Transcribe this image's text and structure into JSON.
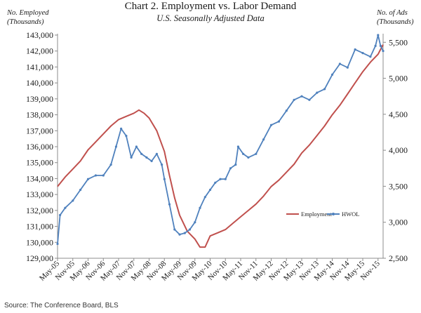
{
  "chart_data": {
    "type": "line",
    "title": "Chart 2. Employment vs. Labor Demand",
    "subtitle": "U.S. Seasonally Adjusted Data",
    "ylabel_left": [
      "No. Employed",
      "(Thousands)"
    ],
    "ylabel_right": [
      "No. of Ads",
      "(Thousands)"
    ],
    "source": "Source: The Conference Board, BLS",
    "ylim_left": [
      129000,
      143000
    ],
    "ylim_right": [
      2500,
      5600
    ],
    "yticks_left": [
      "129,000",
      "130,000",
      "131,000",
      "132,000",
      "133,000",
      "134,000",
      "135,000",
      "136,000",
      "137,000",
      "138,000",
      "139,000",
      "140,000",
      "141,000",
      "142,000",
      "143,000"
    ],
    "yticks_right": [
      "2,500",
      "3,000",
      "3,500",
      "4,000",
      "4,500",
      "5,000",
      "5,500"
    ],
    "xticks": [
      "May-05",
      "Nov-05",
      "May-06",
      "Nov-06",
      "May-07",
      "Nov-07",
      "May-08",
      "Nov-08",
      "May-09",
      "Nov-09",
      "May-10",
      "Nov-10",
      "May-11",
      "Nov-11",
      "May-12",
      "Nov-12",
      "May-13",
      "Nov-13",
      "May-14",
      "Nov-14",
      "May-15",
      "Nov-15"
    ],
    "legend_position": "center-right",
    "grid": false,
    "colors": {
      "employment": "#c0504d",
      "hwol": "#4f81bd"
    },
    "series": [
      {
        "name": "Employment",
        "axis": "left",
        "points": [
          [
            "May-05",
            133500
          ],
          [
            "Aug-05",
            134100
          ],
          [
            "Nov-05",
            134600
          ],
          [
            "Feb-06",
            135100
          ],
          [
            "May-06",
            135800
          ],
          [
            "Aug-06",
            136300
          ],
          [
            "Nov-06",
            136800
          ],
          [
            "Feb-07",
            137300
          ],
          [
            "May-07",
            137700
          ],
          [
            "Aug-07",
            137900
          ],
          [
            "Nov-07",
            138100
          ],
          [
            "Jan-08",
            138300
          ],
          [
            "Mar-08",
            138100
          ],
          [
            "May-08",
            137800
          ],
          [
            "Aug-08",
            137000
          ],
          [
            "Nov-08",
            135700
          ],
          [
            "Jan-09",
            134200
          ],
          [
            "Mar-09",
            132800
          ],
          [
            "May-09",
            131700
          ],
          [
            "Aug-09",
            130700
          ],
          [
            "Nov-09",
            130200
          ],
          [
            "Jan-10",
            129700
          ],
          [
            "Mar-10",
            129700
          ],
          [
            "May-10",
            130400
          ],
          [
            "Aug-10",
            130600
          ],
          [
            "Nov-10",
            130800
          ],
          [
            "Feb-11",
            131200
          ],
          [
            "May-11",
            131600
          ],
          [
            "Aug-11",
            132000
          ],
          [
            "Nov-11",
            132400
          ],
          [
            "Feb-12",
            132900
          ],
          [
            "May-12",
            133500
          ],
          [
            "Aug-12",
            133900
          ],
          [
            "Nov-12",
            134400
          ],
          [
            "Feb-13",
            134900
          ],
          [
            "May-13",
            135600
          ],
          [
            "Aug-13",
            136100
          ],
          [
            "Nov-13",
            136700
          ],
          [
            "Feb-14",
            137300
          ],
          [
            "May-14",
            138000
          ],
          [
            "Aug-14",
            138600
          ],
          [
            "Nov-14",
            139300
          ],
          [
            "Feb-15",
            140000
          ],
          [
            "May-15",
            140700
          ],
          [
            "Aug-15",
            141300
          ],
          [
            "Nov-15",
            141800
          ],
          [
            "Dec-15",
            142100
          ],
          [
            "Jan-16",
            142400
          ]
        ]
      },
      {
        "name": "HWOL",
        "axis": "right",
        "points": [
          [
            "May-05",
            2700
          ],
          [
            "Jun-05",
            3100
          ],
          [
            "Aug-05",
            3200
          ],
          [
            "Nov-05",
            3300
          ],
          [
            "Feb-06",
            3450
          ],
          [
            "May-06",
            3600
          ],
          [
            "Aug-06",
            3650
          ],
          [
            "Nov-06",
            3650
          ],
          [
            "Feb-07",
            3800
          ],
          [
            "Apr-07",
            4050
          ],
          [
            "Jun-07",
            4300
          ],
          [
            "Aug-07",
            4200
          ],
          [
            "Oct-07",
            3900
          ],
          [
            "Dec-07",
            4050
          ],
          [
            "Feb-08",
            3950
          ],
          [
            "Apr-08",
            3900
          ],
          [
            "Jun-08",
            3850
          ],
          [
            "Aug-08",
            3950
          ],
          [
            "Oct-08",
            3800
          ],
          [
            "Nov-08",
            3600
          ],
          [
            "Jan-09",
            3250
          ],
          [
            "Mar-09",
            2900
          ],
          [
            "May-09",
            2830
          ],
          [
            "Jul-09",
            2850
          ],
          [
            "Sep-09",
            2900
          ],
          [
            "Nov-09",
            3000
          ],
          [
            "Jan-10",
            3200
          ],
          [
            "Mar-10",
            3350
          ],
          [
            "May-10",
            3450
          ],
          [
            "Jul-10",
            3550
          ],
          [
            "Sep-10",
            3600
          ],
          [
            "Nov-10",
            3600
          ],
          [
            "Jan-11",
            3750
          ],
          [
            "Mar-11",
            3800
          ],
          [
            "Apr-11",
            4050
          ],
          [
            "Jun-11",
            3950
          ],
          [
            "Aug-11",
            3900
          ],
          [
            "Nov-11",
            3950
          ],
          [
            "Feb-12",
            4150
          ],
          [
            "May-12",
            4350
          ],
          [
            "Aug-12",
            4400
          ],
          [
            "Nov-12",
            4550
          ],
          [
            "Feb-13",
            4700
          ],
          [
            "May-13",
            4750
          ],
          [
            "Aug-13",
            4700
          ],
          [
            "Nov-13",
            4800
          ],
          [
            "Feb-14",
            4850
          ],
          [
            "May-14",
            5050
          ],
          [
            "Aug-14",
            5200
          ],
          [
            "Nov-14",
            5150
          ],
          [
            "Feb-15",
            5400
          ],
          [
            "May-15",
            5350
          ],
          [
            "Aug-15",
            5300
          ],
          [
            "Oct-15",
            5450
          ],
          [
            "Nov-15",
            5600
          ],
          [
            "Dec-15",
            5450
          ],
          [
            "Jan-16",
            5380
          ]
        ]
      }
    ]
  }
}
